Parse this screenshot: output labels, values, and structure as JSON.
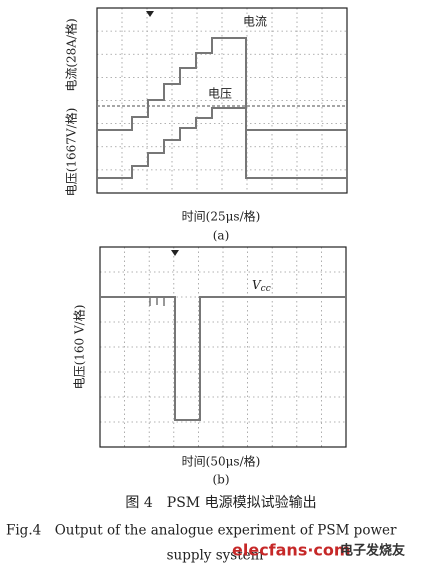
{
  "figure": {
    "panel_a": {
      "current_label": "电流",
      "voltage_label": "电压",
      "y_label_voltage": "电压(1667V/格)",
      "y_label_current": "电流(28A/格)",
      "x_label": "时间(25μs/格)",
      "tag": "(a)"
    },
    "panel_b": {
      "vcc_symbol": "V",
      "vcc_subscript": "cc",
      "y_label": "电压(160 V/格)",
      "x_label": "时间(50μs/格)",
      "tag": "(b)"
    },
    "caption_cn": "图 4　PSM 电源模拟试验输出",
    "caption_en_line1": "Fig.4　Output of the analogue experiment of PSM power",
    "caption_en_line2": "supply system"
  },
  "watermark": {
    "site": "elecfans·com",
    "brand": "电子发烧友"
  }
}
